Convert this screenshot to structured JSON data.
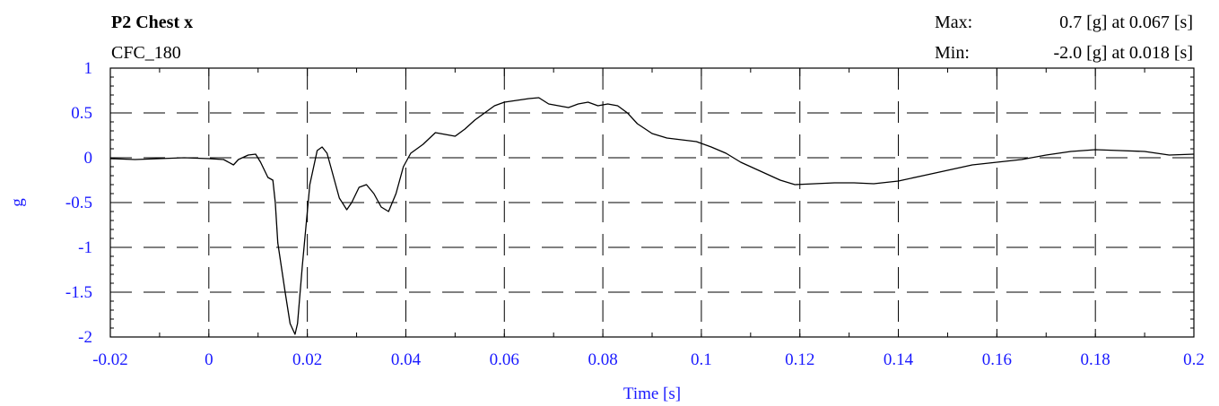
{
  "header": {
    "title": "P2 Chest x",
    "filter": "CFC_180",
    "max_label": "Max:",
    "max_value": "0.7 [g] at 0.067 [s]",
    "min_label": "Min:",
    "min_value": "-2.0 [g] at 0.018 [s]"
  },
  "colors": {
    "axis_text": "#1a1aff",
    "line": "#000000",
    "grid": "#000000"
  },
  "chart_data": {
    "type": "line",
    "xlabel": "Time [s]",
    "ylabel": "g",
    "xlim": [
      -0.02,
      0.2
    ],
    "ylim": [
      -2,
      1
    ],
    "xticks": [
      -0.02,
      0,
      0.02,
      0.04,
      0.06,
      0.08,
      0.1,
      0.12,
      0.14,
      0.16,
      0.18,
      0.2
    ],
    "xtick_labels": [
      "-0.02",
      "0",
      "0.02",
      "0.04",
      "0.06",
      "0.08",
      "0.1",
      "0.12",
      "0.14",
      "0.16",
      "0.18",
      "0.2"
    ],
    "yticks": [
      1,
      0.5,
      0,
      -0.5,
      -1,
      -1.5,
      -2
    ],
    "ytick_labels": [
      "1",
      "0.5",
      "0",
      "-0.5",
      "-1",
      "-1.5",
      "-2"
    ],
    "grid": "dashed",
    "series": [
      {
        "x": [
          -0.02,
          -0.015,
          -0.01,
          -0.005,
          0,
          0.003,
          0.005,
          0.006,
          0.008,
          0.0095,
          0.0105,
          0.012,
          0.013,
          0.0135,
          0.014,
          0.0155,
          0.0165,
          0.0175,
          0.018,
          0.019,
          0.0205,
          0.022,
          0.023,
          0.024,
          0.025,
          0.0265,
          0.028,
          0.029,
          0.0305,
          0.032,
          0.0335,
          0.035,
          0.0365,
          0.038,
          0.0395,
          0.041,
          0.0435,
          0.046,
          0.048,
          0.05,
          0.052,
          0.054,
          0.056,
          0.058,
          0.06,
          0.0625,
          0.065,
          0.067,
          0.069,
          0.071,
          0.073,
          0.075,
          0.077,
          0.079,
          0.081,
          0.083,
          0.085,
          0.087,
          0.09,
          0.093,
          0.096,
          0.099,
          0.102,
          0.105,
          0.108,
          0.112,
          0.116,
          0.119,
          0.123,
          0.127,
          0.131,
          0.135,
          0.14,
          0.145,
          0.15,
          0.155,
          0.16,
          0.165,
          0.17,
          0.175,
          0.18,
          0.185,
          0.19,
          0.195,
          0.2
        ],
        "y": [
          -0.01,
          -0.02,
          -0.01,
          0.0,
          -0.01,
          -0.02,
          -0.08,
          -0.02,
          0.03,
          0.04,
          -0.05,
          -0.22,
          -0.25,
          -0.5,
          -0.95,
          -1.5,
          -1.85,
          -1.97,
          -1.85,
          -1.2,
          -0.3,
          0.08,
          0.12,
          0.05,
          -0.15,
          -0.45,
          -0.58,
          -0.5,
          -0.33,
          -0.3,
          -0.4,
          -0.55,
          -0.6,
          -0.4,
          -0.1,
          0.05,
          0.15,
          0.28,
          0.26,
          0.24,
          0.32,
          0.42,
          0.5,
          0.58,
          0.62,
          0.64,
          0.66,
          0.67,
          0.6,
          0.58,
          0.56,
          0.6,
          0.62,
          0.58,
          0.6,
          0.58,
          0.5,
          0.38,
          0.27,
          0.22,
          0.2,
          0.18,
          0.12,
          0.05,
          -0.05,
          -0.15,
          -0.25,
          -0.3,
          -0.29,
          -0.28,
          -0.28,
          -0.29,
          -0.26,
          -0.2,
          -0.14,
          -0.08,
          -0.05,
          -0.02,
          0.03,
          0.07,
          0.09,
          0.08,
          0.07,
          0.03,
          0.04
        ]
      }
    ]
  }
}
